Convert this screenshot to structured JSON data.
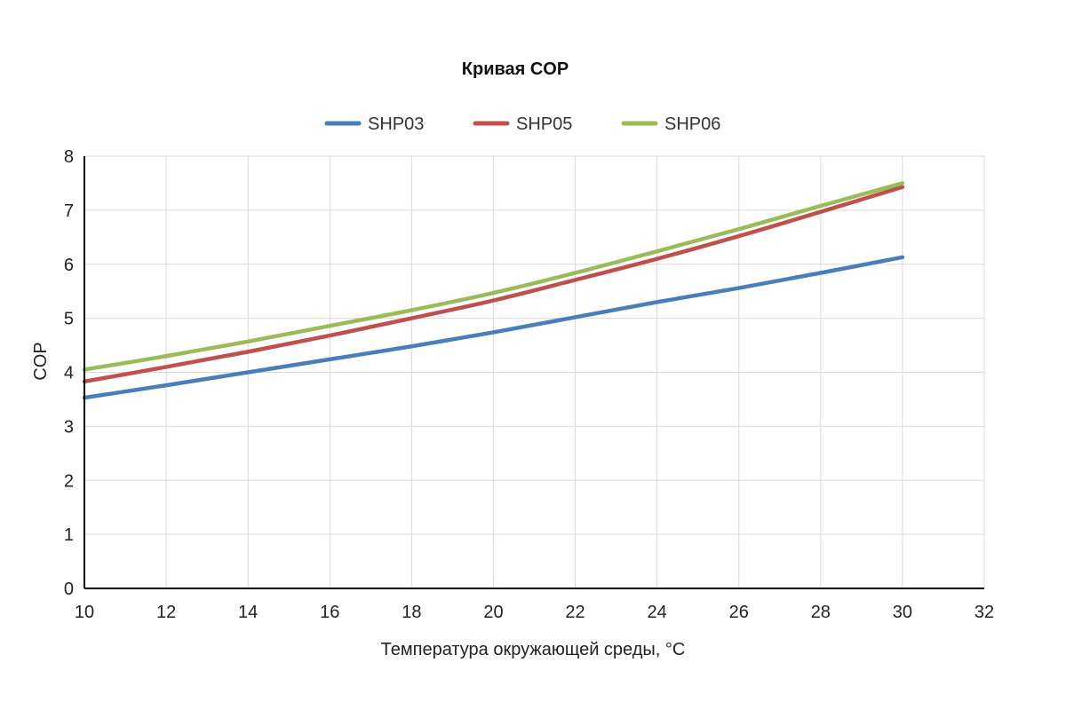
{
  "chart_data": {
    "type": "line",
    "title": "Кривая COP",
    "xlabel": "Температура окружающей среды, °C",
    "ylabel": "COP",
    "xlim": [
      10,
      32
    ],
    "ylim": [
      0,
      8
    ],
    "xticks": [
      10,
      12,
      14,
      16,
      18,
      20,
      22,
      24,
      26,
      28,
      30,
      32
    ],
    "yticks": [
      0,
      1,
      2,
      3,
      4,
      5,
      6,
      7,
      8
    ],
    "grid": true,
    "legend_position": "top",
    "x": [
      10,
      12,
      14,
      16,
      18,
      20,
      22,
      24,
      26,
      28,
      30
    ],
    "series": [
      {
        "name": "SHP03",
        "color": "#4a7ebb",
        "values": [
          3.53,
          3.76,
          4.0,
          4.24,
          4.48,
          4.74,
          5.02,
          5.3,
          5.56,
          5.84,
          6.13
        ]
      },
      {
        "name": "SHP05",
        "color": "#c0504d",
        "values": [
          3.83,
          4.1,
          4.38,
          4.68,
          5.0,
          5.33,
          5.71,
          6.1,
          6.52,
          6.97,
          7.43
        ]
      },
      {
        "name": "SHP06",
        "color": "#9bbb59",
        "values": [
          4.05,
          4.3,
          4.57,
          4.86,
          5.15,
          5.47,
          5.84,
          6.24,
          6.65,
          7.08,
          7.5
        ]
      }
    ]
  }
}
